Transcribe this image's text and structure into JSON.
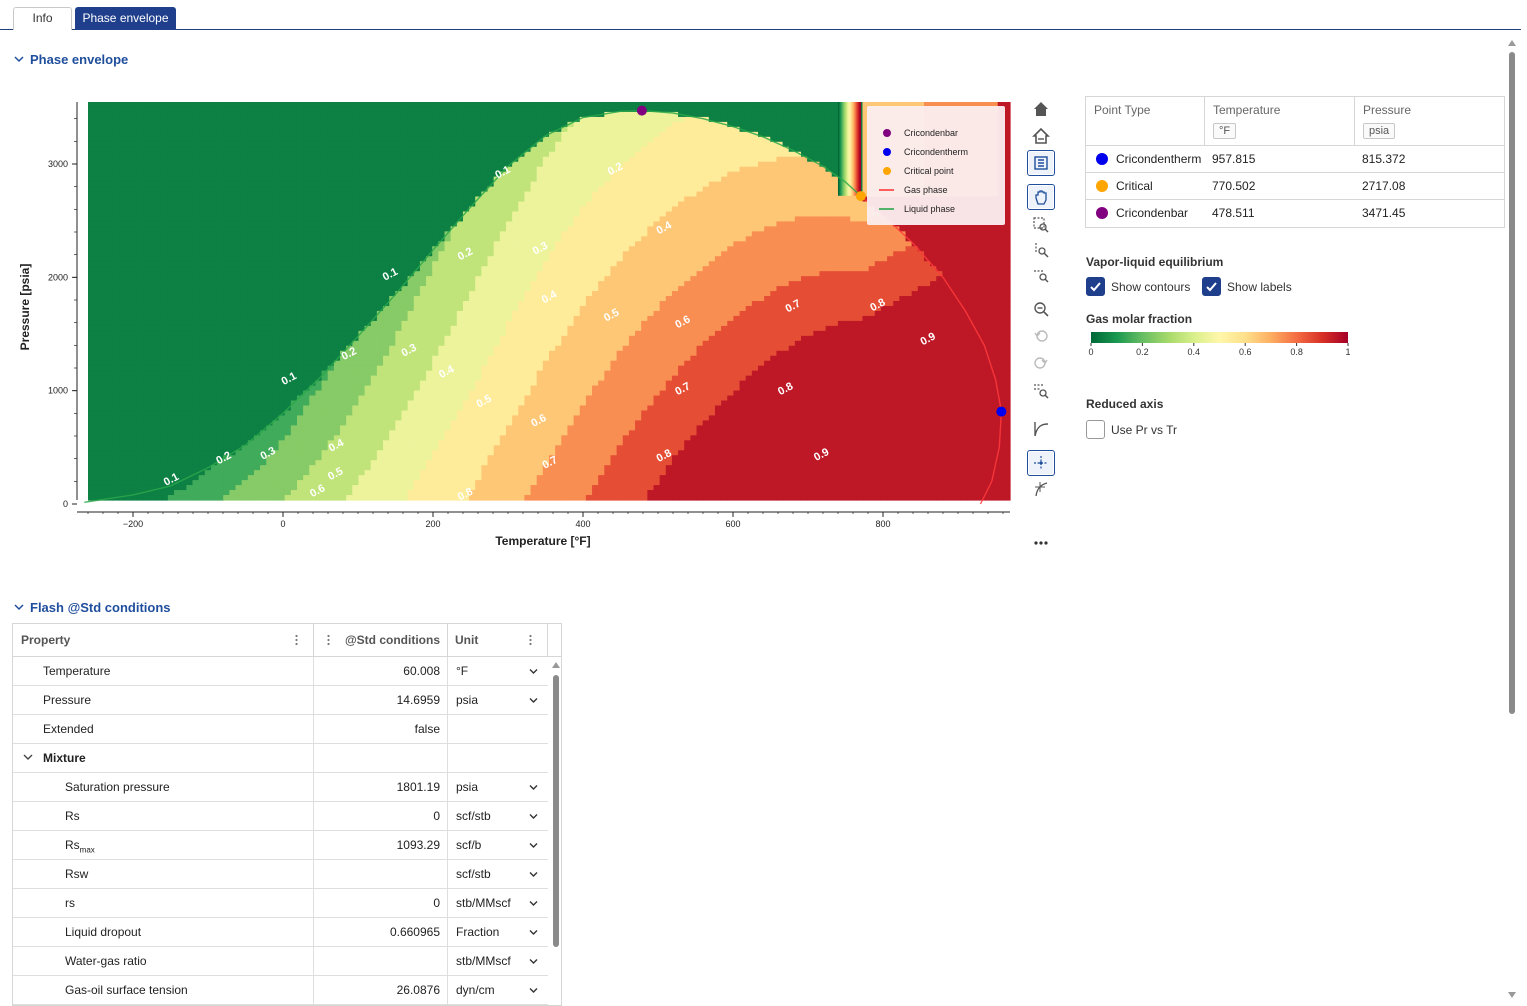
{
  "tabs": [
    {
      "label": "Info",
      "active": false
    },
    {
      "label": "Phase envelope",
      "active": true
    }
  ],
  "phase_section": {
    "title": "Phase envelope"
  },
  "chart_data": {
    "type": "heatmap",
    "title": "",
    "xlabel": "Temperature [°F]",
    "ylabel": "Pressure [psia]",
    "xlim": [
      -275,
      970
    ],
    "ylim": [
      -10,
      3550
    ],
    "x_ticks": [
      -200,
      0,
      200,
      400,
      600,
      800
    ],
    "y_ticks": [
      0,
      1000,
      2000,
      3000
    ],
    "contour_levels": [
      0.1,
      0.2,
      0.3,
      0.4,
      0.5,
      0.6,
      0.7,
      0.8,
      0.9
    ],
    "contour_labels": [
      {
        "text": "0.1",
        "x": 295,
        "y": 2900
      },
      {
        "text": "0.2",
        "x": 445,
        "y": 2930
      },
      {
        "text": "0.4",
        "x": 510,
        "y": 2410
      },
      {
        "text": "0.3",
        "x": 345,
        "y": 2230
      },
      {
        "text": "0.2",
        "x": 245,
        "y": 2180
      },
      {
        "text": "0.1",
        "x": 145,
        "y": 2000
      },
      {
        "text": "0.4",
        "x": 357,
        "y": 1800
      },
      {
        "text": "0.5",
        "x": 440,
        "y": 1640
      },
      {
        "text": "0.6",
        "x": 535,
        "y": 1580
      },
      {
        "text": "0.7",
        "x": 682,
        "y": 1720
      },
      {
        "text": "0.8",
        "x": 795,
        "y": 1730
      },
      {
        "text": "0.9",
        "x": 862,
        "y": 1430
      },
      {
        "text": "0.2",
        "x": 90,
        "y": 1300
      },
      {
        "text": "0.3",
        "x": 170,
        "y": 1330
      },
      {
        "text": "0.1",
        "x": 10,
        "y": 1080
      },
      {
        "text": "0.4",
        "x": 220,
        "y": 1140
      },
      {
        "text": "0.5",
        "x": 270,
        "y": 880
      },
      {
        "text": "0.7",
        "x": 535,
        "y": 990
      },
      {
        "text": "0.8",
        "x": 672,
        "y": 990
      },
      {
        "text": "0.6",
        "x": 343,
        "y": 710
      },
      {
        "text": "0.4",
        "x": 73,
        "y": 490
      },
      {
        "text": "0.3",
        "x": -18,
        "y": 420
      },
      {
        "text": "0.2",
        "x": -77,
        "y": 380
      },
      {
        "text": "0.5",
        "x": 72,
        "y": 240
      },
      {
        "text": "0.1",
        "x": -147,
        "y": 190
      },
      {
        "text": "0.7",
        "x": 358,
        "y": 340
      },
      {
        "text": "0.8",
        "x": 510,
        "y": 400
      },
      {
        "text": "0.9",
        "x": 720,
        "y": 410
      },
      {
        "text": "0.6",
        "x": 48,
        "y": 90
      },
      {
        "text": "0.8",
        "x": 245,
        "y": 60
      }
    ],
    "legend": {
      "placement": "top-right",
      "entries": [
        "Cricondenbar",
        "Cricondentherm",
        "Critical point",
        "Gas phase",
        "Liquid phase"
      ]
    },
    "points": [
      {
        "name": "Cricondenbar",
        "x": 478.511,
        "y": 3471.45,
        "color": "#800080"
      },
      {
        "name": "Cricondentherm",
        "x": 957.815,
        "y": 815.372,
        "color": "#0000ee"
      },
      {
        "name": "Critical point",
        "x": 770.502,
        "y": 2717.08,
        "color": "#ffa500"
      }
    ],
    "series": [
      {
        "name": "Gas phase",
        "color": "#ff3b3b",
        "x": [
          770.502,
          800,
          840,
          880,
          910,
          935,
          950,
          957.815,
          955,
          945,
          930
        ],
        "y": [
          2717.08,
          2550,
          2300,
          2000,
          1700,
          1400,
          1100,
          815.372,
          500,
          200,
          0
        ]
      },
      {
        "name": "Liquid phase",
        "color": "#2aa84a",
        "x": [
          -265,
          -200,
          -150,
          -100,
          -50,
          0,
          50,
          100,
          150,
          200,
          250,
          300,
          350,
          400,
          450,
          478.511,
          520,
          560,
          600,
          640,
          680,
          720,
          750,
          770.502
        ],
        "y": [
          14.7,
          80,
          160,
          320,
          520,
          800,
          1120,
          1480,
          1850,
          2240,
          2620,
          2980,
          3250,
          3410,
          3465,
          3471.45,
          3450,
          3400,
          3330,
          3240,
          3120,
          2980,
          2840,
          2717.08
        ]
      }
    ]
  },
  "points_table": {
    "headers": {
      "point_type": "Point Type",
      "temperature": "Temperature",
      "pressure": "Pressure"
    },
    "units": {
      "temperature": "°F",
      "pressure": "psia"
    },
    "rows": [
      {
        "type": "Cricondentherm",
        "temperature": "957.815",
        "pressure": "815.372",
        "color": "#0000ee"
      },
      {
        "type": "Critical",
        "temperature": "770.502",
        "pressure": "2717.08",
        "color": "#ffa500"
      },
      {
        "type": "Cricondenbar",
        "temperature": "478.511",
        "pressure": "3471.45",
        "color": "#800080"
      }
    ]
  },
  "vle": {
    "title": "Vapor-liquid equilibrium",
    "show_contours": {
      "label": "Show contours",
      "checked": true
    },
    "show_labels": {
      "label": "Show labels",
      "checked": true
    }
  },
  "colorbar": {
    "title": "Gas molar fraction",
    "ticks": [
      "0",
      "0.2",
      "0.4",
      "0.6",
      "0.8",
      "1"
    ]
  },
  "reduced_axis": {
    "title": "Reduced axis",
    "use_pr_tr": {
      "label": "Use Pr vs Tr",
      "checked": false
    }
  },
  "flash_section": {
    "title": "Flash @Std conditions"
  },
  "flash_table": {
    "headers": {
      "property": "Property",
      "value": "@Std conditions",
      "unit": "Unit"
    },
    "rows": [
      {
        "property": "Temperature",
        "value": "60.008",
        "unit": "°F",
        "indent": 1,
        "dropdown": true
      },
      {
        "property": "Pressure",
        "value": "14.6959",
        "unit": "psia",
        "indent": 1,
        "dropdown": true
      },
      {
        "property": "Extended",
        "value": "false",
        "unit": "",
        "indent": 1,
        "dropdown": false
      },
      {
        "property": "Mixture",
        "value": "",
        "unit": "",
        "indent": 1,
        "group": true,
        "dropdown": false
      },
      {
        "property": "Saturation pressure",
        "value": "1801.19",
        "unit": "psia",
        "indent": 2,
        "dropdown": true
      },
      {
        "property": "Rs",
        "value": "0",
        "unit": "scf/stb",
        "indent": 2,
        "dropdown": true
      },
      {
        "property": "Rs",
        "sub": "max",
        "value": "1093.29",
        "unit": "scf/b",
        "indent": 2,
        "dropdown": true
      },
      {
        "property": "Rsw",
        "value": "",
        "unit": "scf/stb",
        "indent": 2,
        "dropdown": true
      },
      {
        "property": "rs",
        "value": "0",
        "unit": "stb/MMscf",
        "indent": 2,
        "dropdown": true
      },
      {
        "property": "Liquid dropout",
        "value": "0.660965",
        "unit": "Fraction",
        "indent": 2,
        "dropdown": true
      },
      {
        "property": "Water-gas ratio",
        "value": "",
        "unit": "stb/MMscf",
        "indent": 2,
        "dropdown": true
      },
      {
        "property": "Gas-oil surface tension",
        "value": "26.0876",
        "unit": "dyn/cm",
        "indent": 2,
        "dropdown": true
      }
    ]
  },
  "toolbar_icons": [
    "home-icon",
    "home-reset-icon",
    "legend-toggle-icon",
    "pan-icon",
    "box-zoom-icon",
    "zoom-y-icon",
    "zoom-x-icon",
    "zoom-out-icon",
    "undo-icon",
    "redo-icon",
    "reset-zoom-icon",
    "curve-icon",
    "crosshair-icon",
    "hover-icon",
    "more-icon"
  ]
}
